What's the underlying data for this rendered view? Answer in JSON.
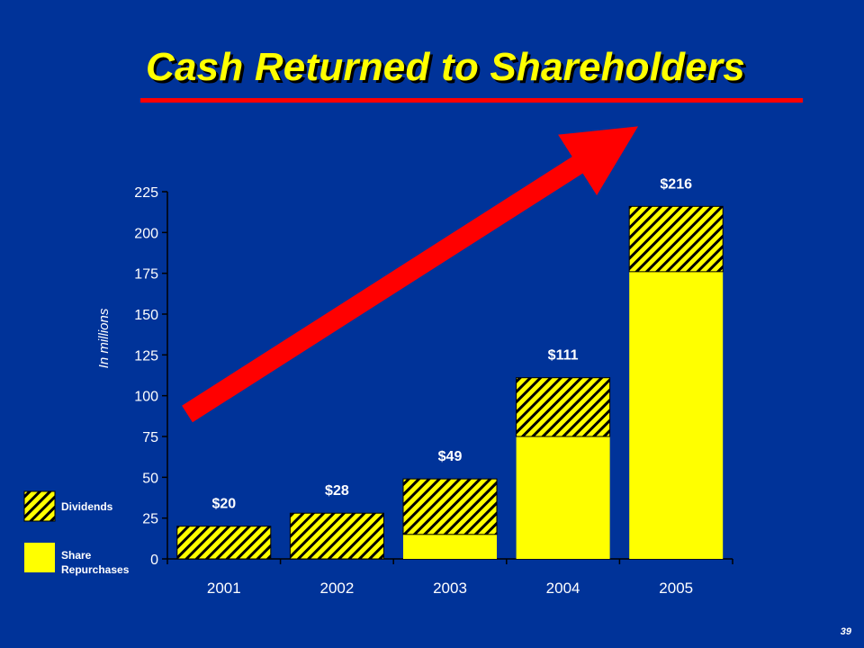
{
  "slide": {
    "title": "Cash Returned to Shareholders",
    "page_number": "39"
  },
  "colors": {
    "background": "#003399",
    "title": "#ffff00",
    "rule": "#ff0000",
    "arrow": "#ff0000",
    "share_repurchases": "#ffff00",
    "dividends_hatch": "#ffff00",
    "dividends_stripe": "#000000",
    "text": "#ffffff"
  },
  "chart_data": {
    "type": "bar",
    "stacked": true,
    "categories": [
      "2001",
      "2002",
      "2003",
      "2004",
      "2005"
    ],
    "series": [
      {
        "name": "Share Repurchases",
        "values": [
          0,
          0,
          15,
          75,
          176
        ]
      },
      {
        "name": "Dividends",
        "values": [
          20,
          28,
          34,
          36,
          40
        ]
      }
    ],
    "totals_labels": [
      "$20",
      "$28",
      "$49",
      "$111",
      "$216"
    ],
    "ylabel": "In millions",
    "ylim": [
      0,
      225
    ],
    "yticks": [
      0,
      25,
      50,
      75,
      100,
      125,
      150,
      175,
      200,
      225
    ],
    "grid": false,
    "legend_position": "bottom-left",
    "annotation": "red arrow indicating upward trend"
  }
}
